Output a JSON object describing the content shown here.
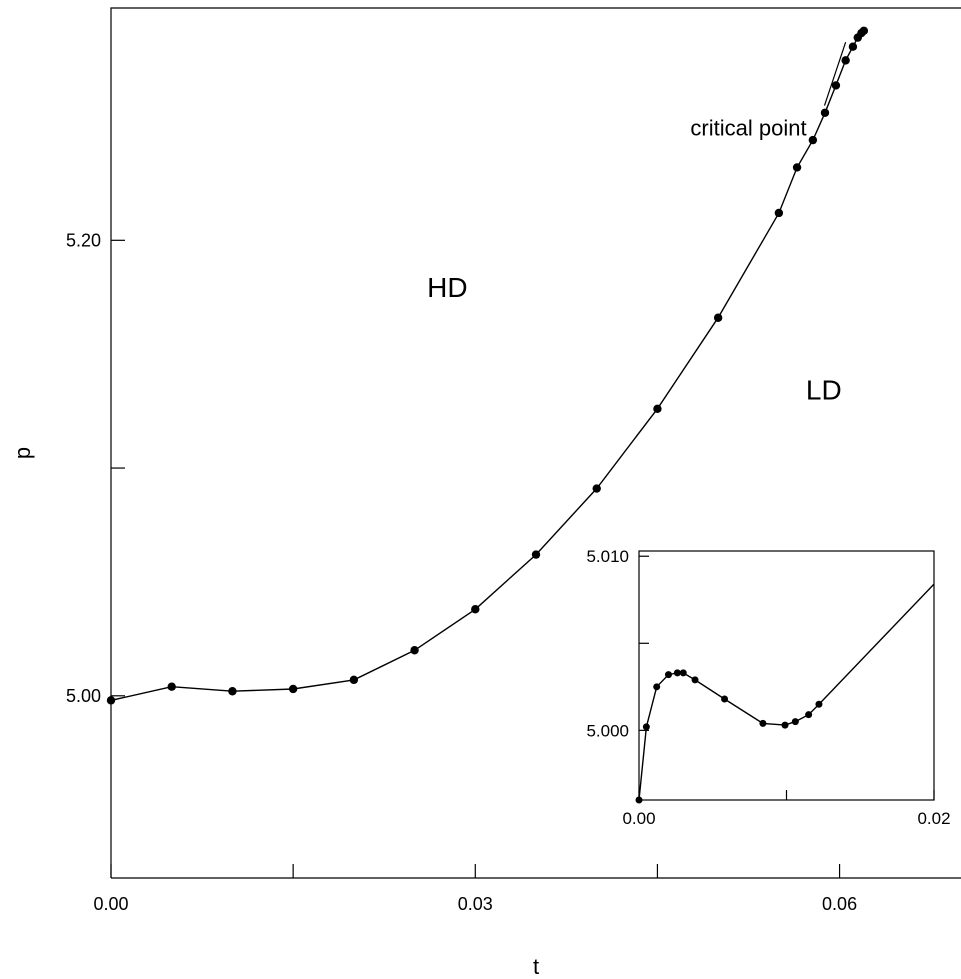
{
  "chart_data": [
    {
      "type": "line",
      "xlabel": "t",
      "ylabel": "p",
      "xlim": [
        0.0,
        0.07
      ],
      "ylim": [
        4.92,
        5.302
      ],
      "xticks": [
        0.0,
        0.03,
        0.06
      ],
      "xtick_labels": [
        "0.00",
        "0.03",
        "0.06"
      ],
      "xticks_minor": [
        0.015,
        0.045
      ],
      "yticks": [
        5.0,
        5.2
      ],
      "ytick_labels": [
        "5.00",
        "5.20"
      ],
      "yticks_minor": [
        5.1
      ],
      "grid": false,
      "markers": "filled-circle",
      "series": [
        {
          "x": [
            0.0,
            0.005,
            0.01,
            0.015,
            0.02,
            0.025,
            0.03,
            0.035,
            0.04,
            0.045,
            0.05,
            0.055,
            0.0565,
            0.0578,
            0.0588,
            0.0597,
            0.0605,
            0.0611,
            0.0615,
            0.0618,
            0.062
          ],
          "y": [
            4.998,
            5.004,
            5.002,
            5.003,
            5.007,
            5.02,
            5.038,
            5.062,
            5.091,
            5.126,
            5.166,
            5.212,
            5.232,
            5.244,
            5.256,
            5.268,
            5.279,
            5.285,
            5.289,
            5.291,
            5.292
          ]
        }
      ],
      "annotations": [
        {
          "text": "HD",
          "x": 0.0277,
          "y": 5.175
        },
        {
          "text": "LD",
          "x": 0.0587,
          "y": 5.13
        },
        {
          "text": "critical point",
          "x": 0.0525,
          "y": 5.246,
          "arrow_to": [
            0.0605,
            5.287
          ]
        }
      ]
    },
    {
      "type": "line",
      "inset": true,
      "xlim": [
        0.0,
        0.02
      ],
      "ylim": [
        4.996,
        5.0103
      ],
      "xticks": [
        0.0,
        0.02
      ],
      "xtick_labels": [
        "0.00",
        "0.02"
      ],
      "xticks_minor": [
        0.01
      ],
      "yticks": [
        5.0,
        5.01
      ],
      "ytick_labels": [
        "5.000",
        "5.010"
      ],
      "yticks_minor": [
        5.005
      ],
      "markers": "filled-circle",
      "series": [
        {
          "x": [
            0.0,
            0.0005,
            0.0012,
            0.002,
            0.0026,
            0.003,
            0.0038,
            0.0058,
            0.0084,
            0.0099,
            0.0106,
            0.0115,
            0.0122,
            0.02
          ],
          "y": [
            4.996,
            5.0002,
            5.0025,
            5.0032,
            5.0033,
            5.0033,
            5.0029,
            5.0018,
            5.0004,
            5.0003,
            5.0005,
            5.0009,
            5.0015,
            5.0084
          ]
        }
      ]
    }
  ]
}
